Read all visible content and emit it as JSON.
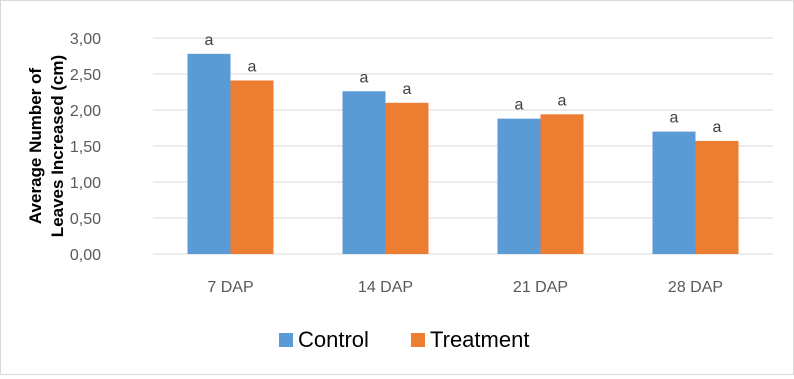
{
  "chart_data": {
    "type": "bar",
    "title": "",
    "xlabel": "",
    "ylabel_lines": [
      "Average Number of",
      "Leaves Increased (cm)"
    ],
    "categories": [
      "7 DAP",
      "14 DAP",
      "21 DAP",
      "28 DAP"
    ],
    "series": [
      {
        "name": "Control",
        "color": "#5b9bd5",
        "values": [
          2.78,
          2.26,
          1.88,
          1.7
        ],
        "labels": [
          "a",
          "a",
          "a",
          "a"
        ]
      },
      {
        "name": "Treatment",
        "color": "#ed7d31",
        "values": [
          2.41,
          2.1,
          1.94,
          1.57
        ],
        "labels": [
          "a",
          "a",
          "a",
          "a"
        ]
      }
    ],
    "ylim": [
      0,
      3
    ],
    "yticks": [
      "0,00",
      "0,50",
      "1,00",
      "1,50",
      "2,00",
      "2,50",
      "3,00"
    ],
    "ytick_values": [
      0,
      0.5,
      1,
      1.5,
      2,
      2.5,
      3
    ],
    "grid": true,
    "gridline_color": "#d9d9d9",
    "legend_position": "bottom"
  }
}
